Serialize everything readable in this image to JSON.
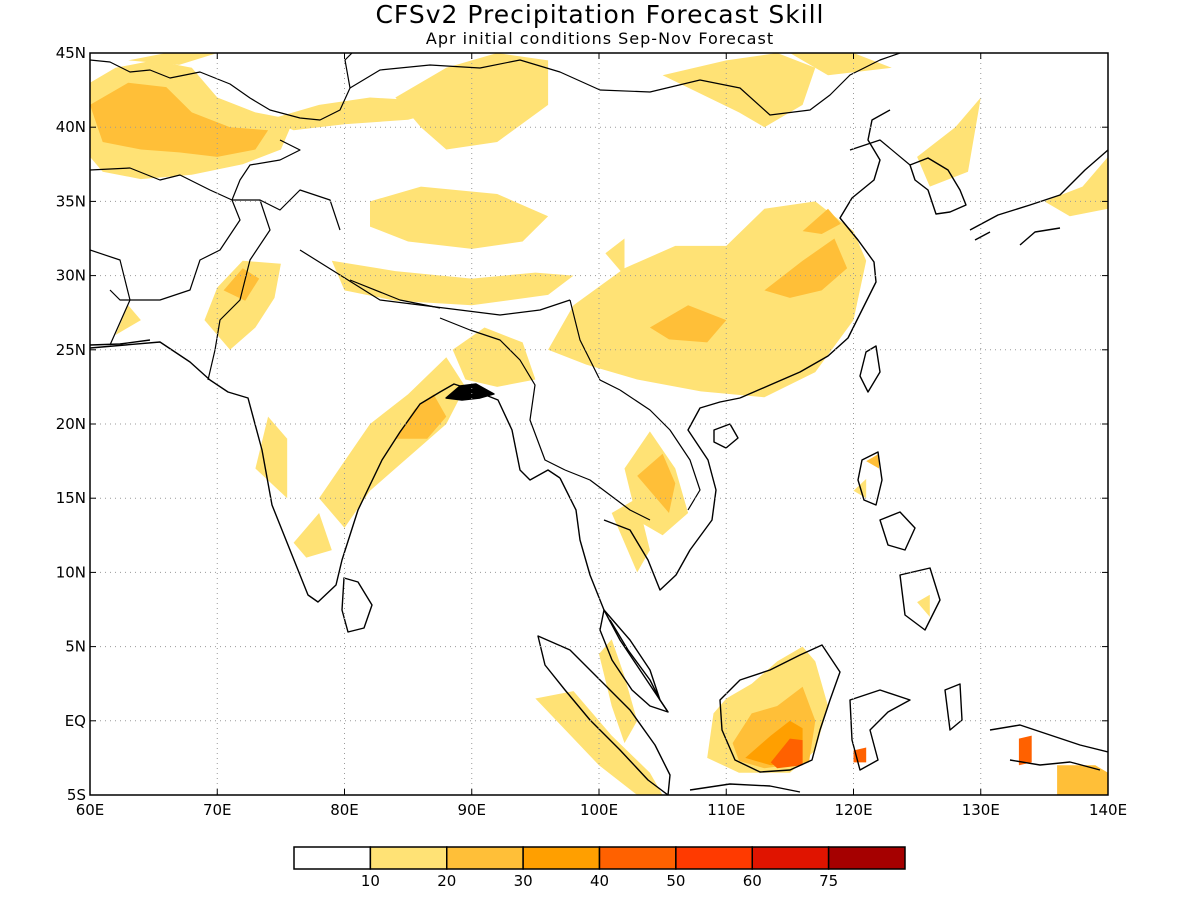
{
  "title": "CFSv2 Precipitation Forecast Skill",
  "subtitle": "Apr initial conditions  Sep-Nov Forecast",
  "map": {
    "lon_range": [
      60,
      140
    ],
    "lat_range": [
      -5,
      45
    ],
    "grid": "dotted",
    "x_ticks": [
      {
        "lon": 60,
        "label": "60E"
      },
      {
        "lon": 70,
        "label": "70E"
      },
      {
        "lon": 80,
        "label": "80E"
      },
      {
        "lon": 90,
        "label": "90E"
      },
      {
        "lon": 100,
        "label": "100E"
      },
      {
        "lon": 110,
        "label": "110E"
      },
      {
        "lon": 120,
        "label": "120E"
      },
      {
        "lon": 130,
        "label": "130E"
      },
      {
        "lon": 140,
        "label": "140E"
      }
    ],
    "y_ticks": [
      {
        "lat": 45,
        "label": "45N"
      },
      {
        "lat": 40,
        "label": "40N"
      },
      {
        "lat": 35,
        "label": "35N"
      },
      {
        "lat": 30,
        "label": "30N"
      },
      {
        "lat": 25,
        "label": "25N"
      },
      {
        "lat": 20,
        "label": "20N"
      },
      {
        "lat": 15,
        "label": "15N"
      },
      {
        "lat": 10,
        "label": "10N"
      },
      {
        "lat": 5,
        "label": "5N"
      },
      {
        "lat": 0,
        "label": "EQ"
      },
      {
        "lat": -5,
        "label": "5S"
      }
    ]
  },
  "colorbar": {
    "colors": [
      "#ffffff",
      "#ffe275",
      "#ffbf38",
      "#ff9f00",
      "#ff6100",
      "#ff3a00",
      "#e01400",
      "#a50000"
    ],
    "labels": [
      "10",
      "20",
      "30",
      "40",
      "50",
      "60",
      "75"
    ]
  },
  "skill_regions": [
    {
      "name": "central-asia-west",
      "level": 1,
      "points": [
        [
          60,
          43
        ],
        [
          62,
          44
        ],
        [
          65,
          44.5
        ],
        [
          68,
          44
        ],
        [
          70,
          42
        ],
        [
          73,
          41
        ],
        [
          76,
          40.5
        ],
        [
          75,
          38.5
        ],
        [
          72,
          37.5
        ],
        [
          68,
          36.8
        ],
        [
          64,
          36.5
        ],
        [
          61,
          37
        ],
        [
          60,
          38
        ]
      ]
    },
    {
      "name": "central-asia-west-core",
      "level": 2,
      "points": [
        [
          60,
          41.5
        ],
        [
          63,
          43
        ],
        [
          66,
          42.7
        ],
        [
          68,
          41
        ],
        [
          71,
          40
        ],
        [
          74,
          39.8
        ],
        [
          73,
          38.5
        ],
        [
          70,
          38
        ],
        [
          67,
          38.3
        ],
        [
          64,
          38.5
        ],
        [
          61,
          39
        ]
      ]
    },
    {
      "name": "kazakh-north",
      "level": 1,
      "points": [
        [
          63,
          44.5
        ],
        [
          66,
          45
        ],
        [
          70,
          45
        ],
        [
          67,
          44.2
        ]
      ]
    },
    {
      "name": "xinjiang-strip",
      "level": 1,
      "points": [
        [
          74,
          40.5
        ],
        [
          78,
          41.5
        ],
        [
          82,
          42
        ],
        [
          86,
          41.8
        ],
        [
          88,
          41.2
        ],
        [
          85,
          40.5
        ],
        [
          80,
          40.2
        ],
        [
          76,
          39.8
        ]
      ]
    },
    {
      "name": "mongolia-west",
      "level": 1,
      "points": [
        [
          84,
          42
        ],
        [
          88,
          44
        ],
        [
          92,
          45
        ],
        [
          96,
          44.5
        ],
        [
          96,
          41.5
        ],
        [
          92,
          39
        ],
        [
          88,
          38.5
        ],
        [
          86,
          40
        ]
      ]
    },
    {
      "name": "mongolia-east",
      "level": 1,
      "points": [
        [
          105,
          43.5
        ],
        [
          110,
          44.5
        ],
        [
          114,
          45
        ],
        [
          117,
          44
        ],
        [
          116,
          41.5
        ],
        [
          113,
          40
        ],
        [
          111,
          41
        ]
      ]
    },
    {
      "name": "ne-china",
      "level": 1,
      "points": [
        [
          115,
          45
        ],
        [
          120,
          45
        ],
        [
          123,
          44
        ],
        [
          118,
          43.5
        ]
      ]
    },
    {
      "name": "korea-patch",
      "level": 1,
      "points": [
        [
          125,
          38
        ],
        [
          128,
          40
        ],
        [
          130,
          42
        ],
        [
          129,
          37
        ],
        [
          126,
          36
        ]
      ]
    },
    {
      "name": "japan-patch",
      "level": 1,
      "points": [
        [
          135,
          35
        ],
        [
          138,
          36
        ],
        [
          140,
          38
        ],
        [
          140,
          34.5
        ],
        [
          137,
          34
        ]
      ]
    },
    {
      "name": "tibet-north",
      "level": 1,
      "points": [
        [
          82,
          35
        ],
        [
          86,
          36
        ],
        [
          92,
          35.5
        ],
        [
          96,
          34
        ],
        [
          94,
          32.3
        ],
        [
          90,
          31.8
        ],
        [
          85,
          32.3
        ],
        [
          82,
          33.3
        ]
      ]
    },
    {
      "name": "south-tibet",
      "level": 1,
      "points": [
        [
          79,
          31
        ],
        [
          84,
          30.3
        ],
        [
          90,
          29.8
        ],
        [
          95,
          30.2
        ],
        [
          98,
          30
        ],
        [
          96,
          28.7
        ],
        [
          90,
          28
        ],
        [
          84,
          28.3
        ],
        [
          80,
          29
        ]
      ]
    },
    {
      "name": "nw-india",
      "level": 1,
      "points": [
        [
          69,
          27
        ],
        [
          70,
          29.2
        ],
        [
          72,
          31
        ],
        [
          75,
          30.8
        ],
        [
          74.5,
          28.5
        ],
        [
          73,
          26.5
        ],
        [
          71,
          25
        ]
      ]
    },
    {
      "name": "nw-india-core",
      "level": 2,
      "points": [
        [
          70.5,
          29
        ],
        [
          72,
          30.5
        ],
        [
          73.3,
          29.8
        ],
        [
          72.2,
          28.3
        ]
      ]
    },
    {
      "name": "pakistan-patch",
      "level": 1,
      "points": [
        [
          62,
          26
        ],
        [
          63,
          28
        ],
        [
          64,
          27
        ]
      ]
    },
    {
      "name": "central-india",
      "level": 1,
      "points": [
        [
          78,
          15
        ],
        [
          80,
          17.5
        ],
        [
          82,
          20
        ],
        [
          85,
          22
        ],
        [
          88,
          24.5
        ],
        [
          89.5,
          22.5
        ],
        [
          88,
          20
        ],
        [
          86,
          18.5
        ],
        [
          84,
          17
        ],
        [
          82,
          15.5
        ],
        [
          80,
          13
        ]
      ]
    },
    {
      "name": "central-india-core",
      "level": 2,
      "points": [
        [
          84,
          19
        ],
        [
          85.5,
          21
        ],
        [
          87,
          22
        ],
        [
          88,
          20.5
        ],
        [
          86.5,
          19
        ]
      ]
    },
    {
      "name": "west-coast-india",
      "level": 1,
      "points": [
        [
          73,
          17
        ],
        [
          74,
          20.5
        ],
        [
          75.5,
          19
        ],
        [
          75.5,
          15
        ]
      ]
    },
    {
      "name": "south-india",
      "level": 1,
      "points": [
        [
          76,
          12
        ],
        [
          78,
          14
        ],
        [
          79,
          11.5
        ],
        [
          77,
          11
        ]
      ]
    },
    {
      "name": "ne-india",
      "level": 1,
      "points": [
        [
          88.5,
          25
        ],
        [
          91,
          26.5
        ],
        [
          94,
          25.5
        ],
        [
          95,
          23
        ],
        [
          92,
          22.5
        ],
        [
          89.5,
          23
        ]
      ]
    },
    {
      "name": "south-china",
      "level": 1,
      "points": [
        [
          96,
          25
        ],
        [
          98,
          28
        ],
        [
          102,
          30.5
        ],
        [
          106,
          32
        ],
        [
          110,
          32
        ],
        [
          113,
          34.5
        ],
        [
          117,
          35
        ],
        [
          120,
          33
        ],
        [
          121,
          31
        ],
        [
          120,
          27
        ],
        [
          117,
          23.5
        ],
        [
          113,
          21.8
        ],
        [
          108,
          22.2
        ],
        [
          103,
          23
        ],
        [
          99,
          24
        ]
      ]
    },
    {
      "name": "south-china-core",
      "level": 2,
      "points": [
        [
          104,
          26.5
        ],
        [
          107,
          28
        ],
        [
          110,
          27
        ],
        [
          108.5,
          25.5
        ],
        [
          105.5,
          25.7
        ]
      ]
    },
    {
      "name": "east-china-core",
      "level": 2,
      "points": [
        [
          113,
          29
        ],
        [
          116,
          31
        ],
        [
          118.5,
          32.5
        ],
        [
          119.5,
          30.5
        ],
        [
          117.5,
          29
        ],
        [
          115,
          28.5
        ]
      ]
    },
    {
      "name": "yangtze-core",
      "level": 2,
      "points": [
        [
          116,
          33
        ],
        [
          118,
          34.5
        ],
        [
          119,
          33.5
        ],
        [
          117.5,
          32.8
        ]
      ]
    },
    {
      "name": "sichuan-patch",
      "level": 1,
      "points": [
        [
          100.5,
          31.5
        ],
        [
          102,
          32.5
        ],
        [
          102,
          30
        ]
      ]
    },
    {
      "name": "indochina-north",
      "level": 1,
      "points": [
        [
          102,
          17
        ],
        [
          104,
          19.5
        ],
        [
          106,
          17
        ],
        [
          107,
          14
        ],
        [
          105,
          12.5
        ],
        [
          103,
          13.5
        ]
      ]
    },
    {
      "name": "indochina-core",
      "level": 2,
      "points": [
        [
          103,
          16.5
        ],
        [
          105,
          18
        ],
        [
          106,
          16
        ],
        [
          105.5,
          14
        ]
      ]
    },
    {
      "name": "cambodia",
      "level": 1,
      "points": [
        [
          101,
          14
        ],
        [
          103,
          15
        ],
        [
          104,
          11.5
        ],
        [
          103,
          10
        ]
      ]
    },
    {
      "name": "luzon-patch",
      "level": 2,
      "points": [
        [
          121,
          17.5
        ],
        [
          122,
          18
        ],
        [
          122,
          17
        ]
      ]
    },
    {
      "name": "luzon-patch-2",
      "level": 1,
      "points": [
        [
          120,
          15.5
        ],
        [
          121,
          16.3
        ],
        [
          121,
          15
        ]
      ]
    },
    {
      "name": "mindanao-patch",
      "level": 1,
      "points": [
        [
          125,
          8
        ],
        [
          126,
          8.5
        ],
        [
          126,
          7
        ]
      ]
    },
    {
      "name": "malaya",
      "level": 1,
      "points": [
        [
          100,
          4.5
        ],
        [
          101,
          5.5
        ],
        [
          102,
          3
        ],
        [
          103,
          0
        ],
        [
          102,
          -1.5
        ],
        [
          101,
          1
        ]
      ]
    },
    {
      "name": "sumatra",
      "level": 1,
      "points": [
        [
          95,
          1.5
        ],
        [
          98,
          2
        ],
        [
          101,
          -1
        ],
        [
          104,
          -3.5
        ],
        [
          105,
          -5
        ],
        [
          103,
          -5
        ],
        [
          100,
          -3
        ]
      ]
    },
    {
      "name": "borneo",
      "level": 1,
      "points": [
        [
          109,
          0.5
        ],
        [
          110,
          1.5
        ],
        [
          112,
          2.5
        ],
        [
          114,
          4
        ],
        [
          116,
          5
        ],
        [
          117,
          4
        ],
        [
          118,
          1
        ],
        [
          117,
          -2
        ],
        [
          115,
          -3.5
        ],
        [
          111,
          -3.5
        ],
        [
          108.5,
          -2.5
        ]
      ]
    },
    {
      "name": "borneo-mid",
      "level": 2,
      "points": [
        [
          110.5,
          -1.5
        ],
        [
          112,
          0.5
        ],
        [
          114,
          1
        ],
        [
          116,
          2.3
        ],
        [
          117,
          0
        ],
        [
          116.5,
          -2.8
        ],
        [
          113,
          -3.2
        ],
        [
          111,
          -2.7
        ]
      ]
    },
    {
      "name": "borneo-high",
      "level": 3,
      "points": [
        [
          111.5,
          -2.5
        ],
        [
          113.5,
          -1
        ],
        [
          115,
          0
        ],
        [
          116,
          -0.5
        ],
        [
          116,
          -2.8
        ],
        [
          113.5,
          -3
        ]
      ]
    },
    {
      "name": "borneo-peak",
      "level": 4,
      "points": [
        [
          113.5,
          -2.8
        ],
        [
          115,
          -1.2
        ],
        [
          116,
          -1.3
        ],
        [
          116,
          -3
        ],
        [
          114,
          -3.2
        ]
      ]
    },
    {
      "name": "sulawesi-patch",
      "level": 4,
      "points": [
        [
          120,
          -2
        ],
        [
          121,
          -1.8
        ],
        [
          121,
          -2.8
        ],
        [
          120,
          -2.8
        ]
      ]
    },
    {
      "name": "west-papua-patch",
      "level": 4,
      "points": [
        [
          133,
          -1.2
        ],
        [
          134,
          -1
        ],
        [
          134,
          -2.8
        ],
        [
          133,
          -3
        ]
      ]
    },
    {
      "name": "new-guinea-patch",
      "level": 2,
      "points": [
        [
          136,
          -3
        ],
        [
          139,
          -3
        ],
        [
          140,
          -3.5
        ],
        [
          140,
          -5
        ],
        [
          136,
          -5
        ]
      ]
    }
  ]
}
